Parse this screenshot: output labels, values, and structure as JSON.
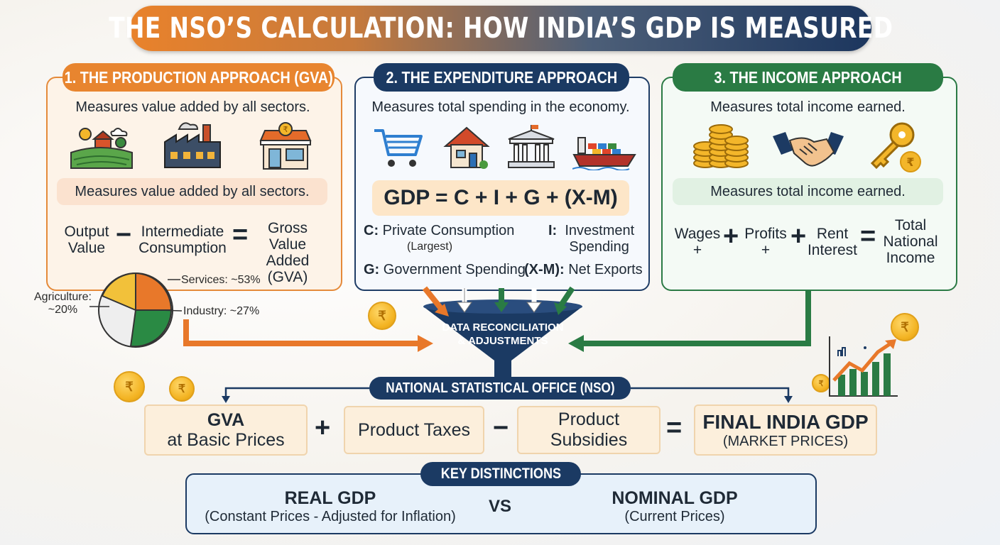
{
  "title": "THE NSO’S CALCULATION: HOW INDIA’S GDP IS MEASURED",
  "production": {
    "heading": "1. THE PRODUCTION APPROACH (GVA)",
    "description": "Measures value added by all sectors.",
    "band_text": "Measures value added by all sectors.",
    "eq_left": [
      "Output",
      "Value"
    ],
    "eq_minus": "−",
    "eq_mid": [
      "Intermediate",
      "Consumption"
    ],
    "eq_equals": "=",
    "eq_right": [
      "Gross Value",
      "Added",
      "(GVA)"
    ],
    "icons": [
      "farm-icon",
      "factory-icon",
      "shop-icon"
    ]
  },
  "expenditure": {
    "heading": "2. THE EXPENDITURE APPROACH",
    "description": "Measures total spending in the economy.",
    "formula": "GDP = C + I + G + (X-M)",
    "c_key": "C:",
    "c_text": "Private Consumption",
    "c_note": "(Largest)",
    "i_key": "I:",
    "i_text": [
      "Investment",
      "Spending"
    ],
    "g_key": "G:",
    "g_text": "Government Spending",
    "xm_key": "(X-M):",
    "xm_text": "Net Exports",
    "icons": [
      "shopping-cart-icon",
      "house-icon",
      "government-building-icon",
      "cargo-ship-icon"
    ]
  },
  "income": {
    "heading": "3. THE INCOME APPROACH",
    "description": "Measures total income earned.",
    "band_text": "Measures total income earned.",
    "wages": "Wages",
    "wages_plus": "+",
    "profits": "Profits",
    "profits_plus": "+",
    "rent": [
      "Rent",
      "Interest"
    ],
    "plus": "+",
    "equals": "=",
    "total": [
      "Total",
      "National",
      "Income"
    ],
    "icons": [
      "coin-stack-icon",
      "handshake-icon",
      "key-icon"
    ]
  },
  "pie": {
    "labels": {
      "services": "Services: ~53%",
      "agriculture": [
        "Agriculture:",
        "~20%"
      ],
      "industry": "Industry: ~27%"
    },
    "shares": {
      "services": 53,
      "industry": 27,
      "agriculture": 20
    },
    "colors": {
      "services": "#e8782a",
      "industry": "#2a8a44",
      "agriculture": "#f2c13a",
      "other": "#eeeeee"
    }
  },
  "funnel": {
    "label": [
      "DATA RECONCILIATION",
      "& ADJUSTMENTS"
    ]
  },
  "nso": {
    "label": "NATIONAL STATISTICAL OFFICE (NSO)"
  },
  "final": {
    "gva": [
      "GVA",
      "at Basic Prices"
    ],
    "plus": "+",
    "taxes": "Product Taxes",
    "minus": "−",
    "subsidies": "Product Subsidies",
    "equals": "=",
    "gdp": "FINAL INDIA GDP",
    "gdp_sub": "(MARKET PRICES)"
  },
  "distinctions": {
    "heading": "KEY DISTINCTIONS",
    "real": "REAL GDP",
    "real_sub": "(Constant Prices - Adjusted for Inflation)",
    "vs": "VS",
    "nominal": "NOMINAL GDP",
    "nominal_sub": "(Current Prices)"
  },
  "currency_symbol": "₹",
  "colors": {
    "orange": "#e8852f",
    "navy": "#1b3a63",
    "green": "#2a7b44"
  }
}
